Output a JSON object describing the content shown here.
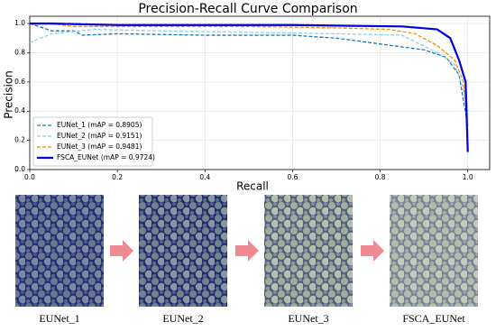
{
  "chart_data": {
    "type": "line",
    "title": "Precision-Recall Curve Comparison",
    "x_label": "Recall",
    "y_label": "Precision",
    "xlim": [
      0,
      1.05
    ],
    "ylim": [
      0,
      1.05
    ],
    "xticks": [
      {
        "value": 0,
        "label": "0.0"
      },
      0.2,
      0.4,
      0.6,
      0.8,
      {
        "value": 1,
        "label": "1.0"
      }
    ],
    "yticks": [
      {
        "value": 0,
        "label": "0.0"
      },
      0.2,
      0.4,
      0.6,
      0.8,
      {
        "value": 1,
        "label": "1.0"
      }
    ],
    "grid": true,
    "legend": "lower left",
    "series": [
      {
        "name": "EUNet_1 (mAP = 0.8905)",
        "color": "#1f77b4",
        "linestyle": "dashed",
        "x": [
          0,
          0.05,
          0.1,
          0.12,
          0.2,
          0.4,
          0.6,
          0.7,
          0.8,
          0.9,
          0.95,
          0.98,
          1.0
        ],
        "values": [
          1.0,
          0.95,
          0.95,
          0.92,
          0.93,
          0.92,
          0.92,
          0.9,
          0.86,
          0.82,
          0.77,
          0.65,
          0.3
        ]
      },
      {
        "name": "EUNet_2 (mAP = 0.9151)",
        "color": "#8fd0ea",
        "linestyle": "dashed",
        "x": [
          0,
          0.05,
          0.15,
          0.3,
          0.5,
          0.7,
          0.85,
          0.93,
          0.97,
          0.99,
          1.0
        ],
        "values": [
          0.87,
          0.93,
          0.96,
          0.95,
          0.94,
          0.93,
          0.92,
          0.8,
          0.72,
          0.55,
          0.4
        ]
      },
      {
        "name": "EUNet_3 (mAP = 0.9481)",
        "color": "#ff8c00",
        "linestyle": "dashed",
        "x": [
          0,
          0.05,
          0.1,
          0.3,
          0.5,
          0.7,
          0.82,
          0.88,
          0.93,
          0.97,
          0.99,
          1.0
        ],
        "values": [
          1.0,
          1.0,
          0.98,
          0.98,
          0.98,
          0.97,
          0.96,
          0.93,
          0.85,
          0.75,
          0.6,
          0.3
        ]
      },
      {
        "name": "FSCA_EUNet (mAP = 0.9724)",
        "color": "#0000dd",
        "linestyle": "solid",
        "x": [
          0,
          0.05,
          0.2,
          0.6,
          0.85,
          0.93,
          0.96,
          0.98,
          0.995,
          1.0
        ],
        "values": [
          1.0,
          1.0,
          0.99,
          0.99,
          0.98,
          0.96,
          0.9,
          0.75,
          0.6,
          0.12
        ]
      }
    ]
  },
  "panels": {
    "labels": [
      "EUNet_1",
      "EUNet_2",
      "EUNet_3",
      "FSCA_EUNet"
    ]
  }
}
